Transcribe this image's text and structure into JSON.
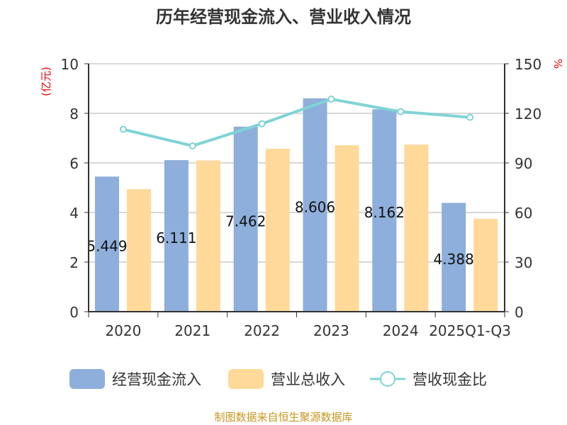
{
  "chart_data": {
    "type": "bar",
    "title": "历年经营现金流入、营业收入情况",
    "categories": [
      "2020",
      "2021",
      "2022",
      "2023",
      "2024",
      "2025Q1-Q3"
    ],
    "series": [
      {
        "name": "经营现金流入",
        "type": "bar",
        "axis": "left",
        "color": "#8eaedb",
        "values": [
          5.449,
          6.111,
          7.462,
          8.606,
          8.162,
          4.388
        ],
        "labels": [
          "5.449",
          "6.111",
          "7.462",
          "8.606",
          "8.162",
          "4.388"
        ]
      },
      {
        "name": "营业总收入",
        "type": "bar",
        "axis": "left",
        "color": "#ffd999",
        "values": [
          4.94,
          6.1,
          6.57,
          6.71,
          6.74,
          3.74
        ]
      },
      {
        "name": "营收现金比",
        "type": "line",
        "axis": "right",
        "color": "#7fd3d6",
        "values": [
          110.3,
          100.3,
          113.7,
          128.6,
          121.0,
          117.6
        ]
      }
    ],
    "yleft": {
      "label": "(亿元)",
      "ylim": [
        0,
        10
      ],
      "ticks": [
        "0",
        "2",
        "4",
        "6",
        "8",
        "10"
      ]
    },
    "yright": {
      "label": "%",
      "ylim": [
        0,
        150
      ],
      "ticks": [
        "0",
        "30",
        "60",
        "90",
        "120",
        "150"
      ]
    },
    "grid": true,
    "legend": "bottom",
    "source": "制图数据来自恒生聚源数据库"
  }
}
